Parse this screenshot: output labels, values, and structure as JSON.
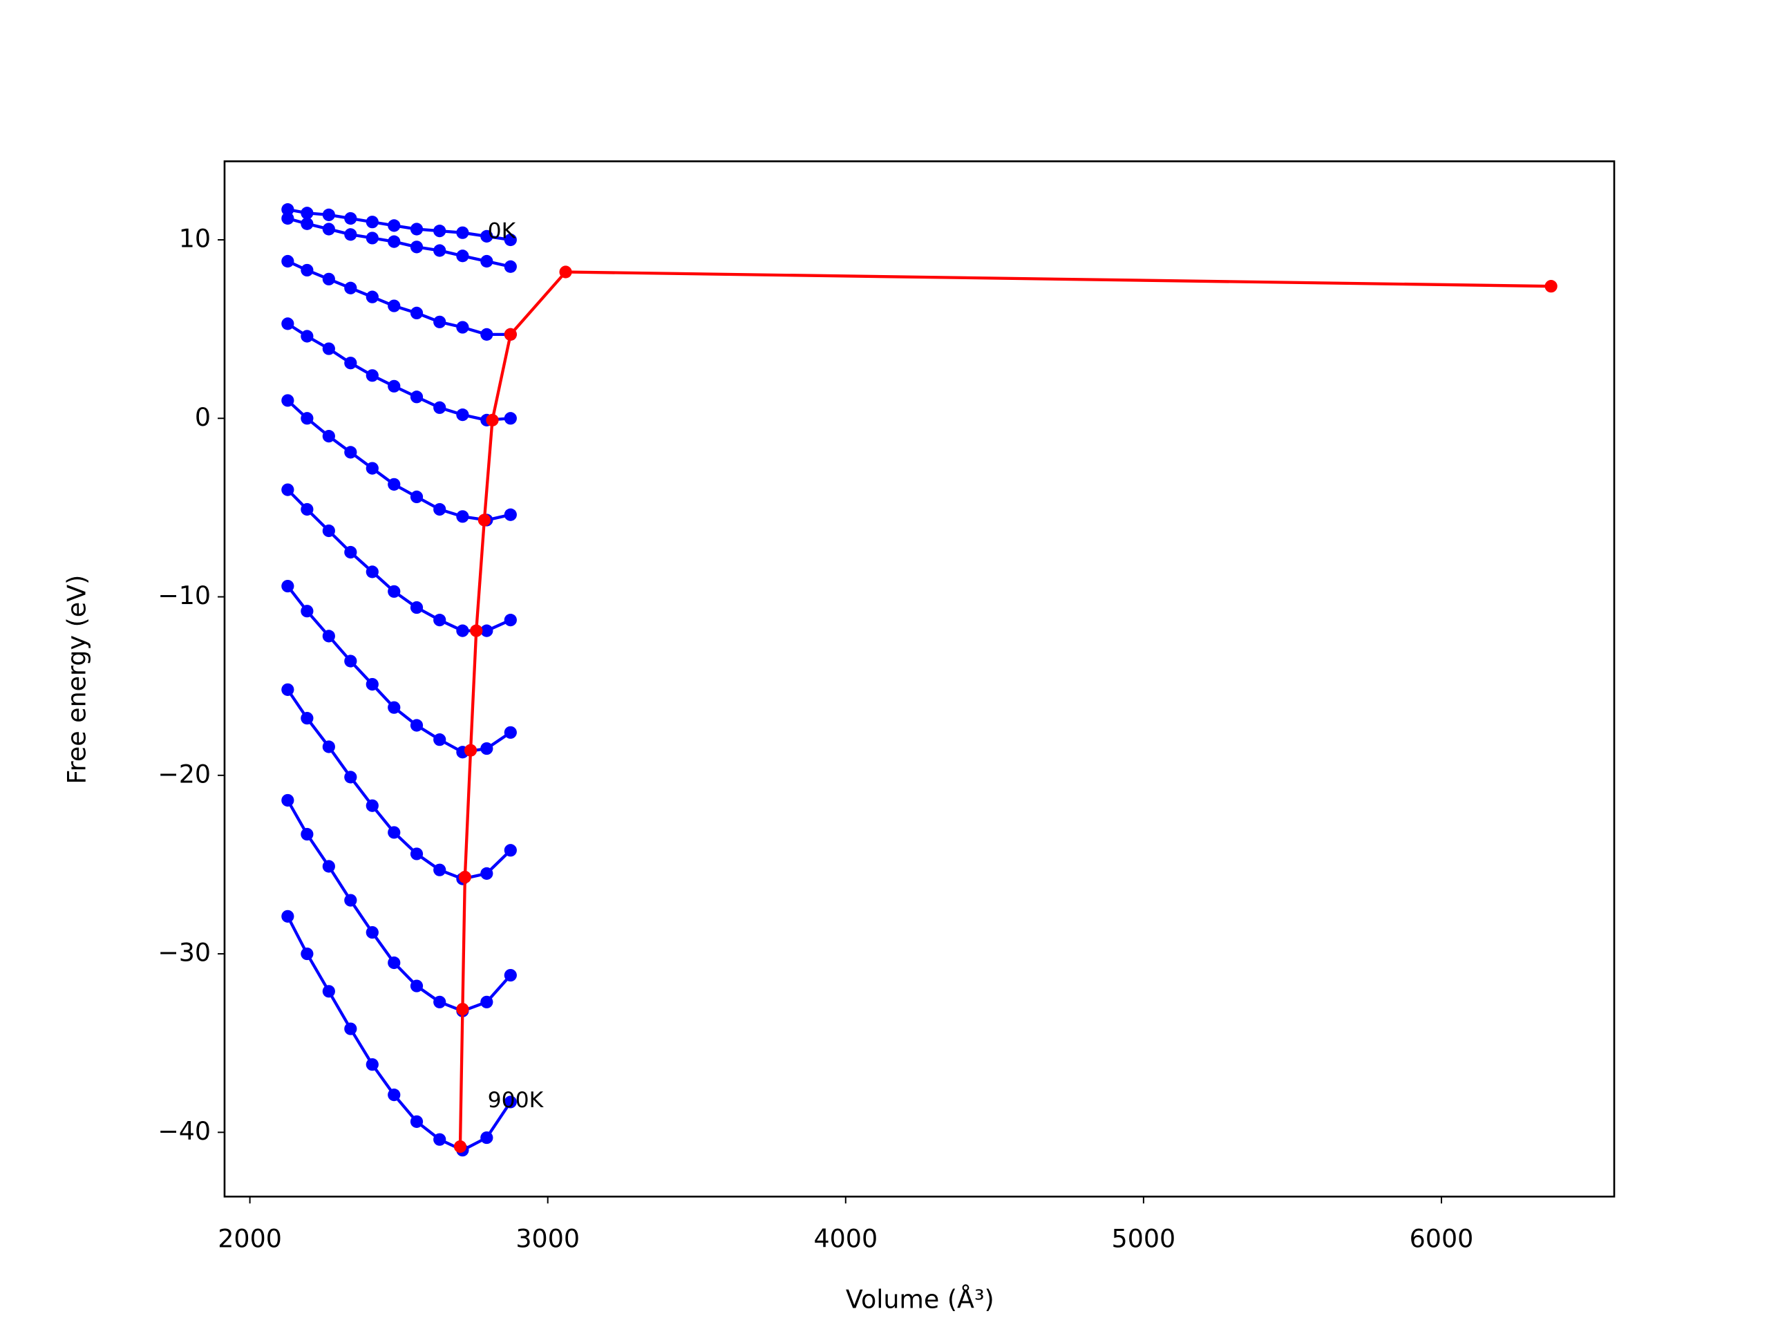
{
  "chart_data": {
    "type": "line",
    "x_label": "Volume (Å³)",
    "y_label": "Free energy (eV)",
    "xlim": [
      1915,
      6580
    ],
    "ylim": [
      -43.6,
      14.4
    ],
    "xticks": [
      2000,
      3000,
      4000,
      5000,
      6000
    ],
    "yticks": [
      {
        "value": 10,
        "label": "10"
      },
      {
        "value": 0,
        "label": "0"
      },
      {
        "value": -10,
        "label": "−10"
      },
      {
        "value": -20,
        "label": "−20"
      },
      {
        "value": -30,
        "label": "−30"
      },
      {
        "value": -40,
        "label": "−40"
      }
    ],
    "grid": false,
    "x": [
      2127,
      2192,
      2265,
      2338,
      2411,
      2484,
      2560,
      2637,
      2714,
      2795,
      2875
    ],
    "series": [
      {
        "color": "#0000ff",
        "values": [
          11.7,
          11.5,
          11.4,
          11.2,
          11.0,
          10.8,
          10.6,
          10.5,
          10.4,
          10.2,
          10.0
        ]
      },
      {
        "color": "#0000ff",
        "values": [
          11.2,
          10.9,
          10.6,
          10.3,
          10.1,
          9.9,
          9.6,
          9.4,
          9.1,
          8.8,
          8.5
        ]
      },
      {
        "color": "#0000ff",
        "values": [
          8.8,
          8.3,
          7.8,
          7.3,
          6.8,
          6.3,
          5.9,
          5.4,
          5.1,
          4.7,
          4.7
        ]
      },
      {
        "color": "#0000ff",
        "values": [
          5.3,
          4.6,
          3.9,
          3.1,
          2.4,
          1.8,
          1.2,
          0.6,
          0.2,
          -0.1,
          0.0
        ]
      },
      {
        "color": "#0000ff",
        "values": [
          1.0,
          0.0,
          -1.0,
          -1.9,
          -2.8,
          -3.7,
          -4.4,
          -5.1,
          -5.5,
          -5.7,
          -5.4
        ]
      },
      {
        "color": "#0000ff",
        "values": [
          -4.0,
          -5.1,
          -6.3,
          -7.5,
          -8.6,
          -9.7,
          -10.6,
          -11.3,
          -11.9,
          -11.9,
          -11.3
        ]
      },
      {
        "color": "#0000ff",
        "values": [
          -9.4,
          -10.8,
          -12.2,
          -13.6,
          -14.9,
          -16.2,
          -17.2,
          -18.0,
          -18.7,
          -18.5,
          -17.6
        ]
      },
      {
        "color": "#0000ff",
        "values": [
          -15.2,
          -16.8,
          -18.4,
          -20.1,
          -21.7,
          -23.2,
          -24.4,
          -25.3,
          -25.8,
          -25.5,
          -24.2
        ]
      },
      {
        "color": "#0000ff",
        "values": [
          -21.4,
          -23.3,
          -25.1,
          -27.0,
          -28.8,
          -30.5,
          -31.8,
          -32.7,
          -33.2,
          -32.7,
          -31.2
        ]
      },
      {
        "color": "#0000ff",
        "values": [
          -27.9,
          -30.0,
          -32.1,
          -34.2,
          -36.2,
          -37.9,
          -39.4,
          -40.4,
          -41.0,
          -40.3,
          -38.3
        ]
      },
      {
        "color": "#ff0000",
        "x": [
          6368,
          3060,
          2875,
          2814,
          2787,
          2760,
          2741,
          2722,
          2714,
          2706
        ],
        "values": [
          7.4,
          8.2,
          4.7,
          -0.1,
          -5.7,
          -11.9,
          -18.6,
          -25.7,
          -33.1,
          -40.8
        ]
      }
    ],
    "annotations": [
      {
        "text": "0K",
        "x": 2798,
        "y": 10.1
      },
      {
        "text": "900K",
        "x": 2798,
        "y": -38.6
      }
    ]
  }
}
